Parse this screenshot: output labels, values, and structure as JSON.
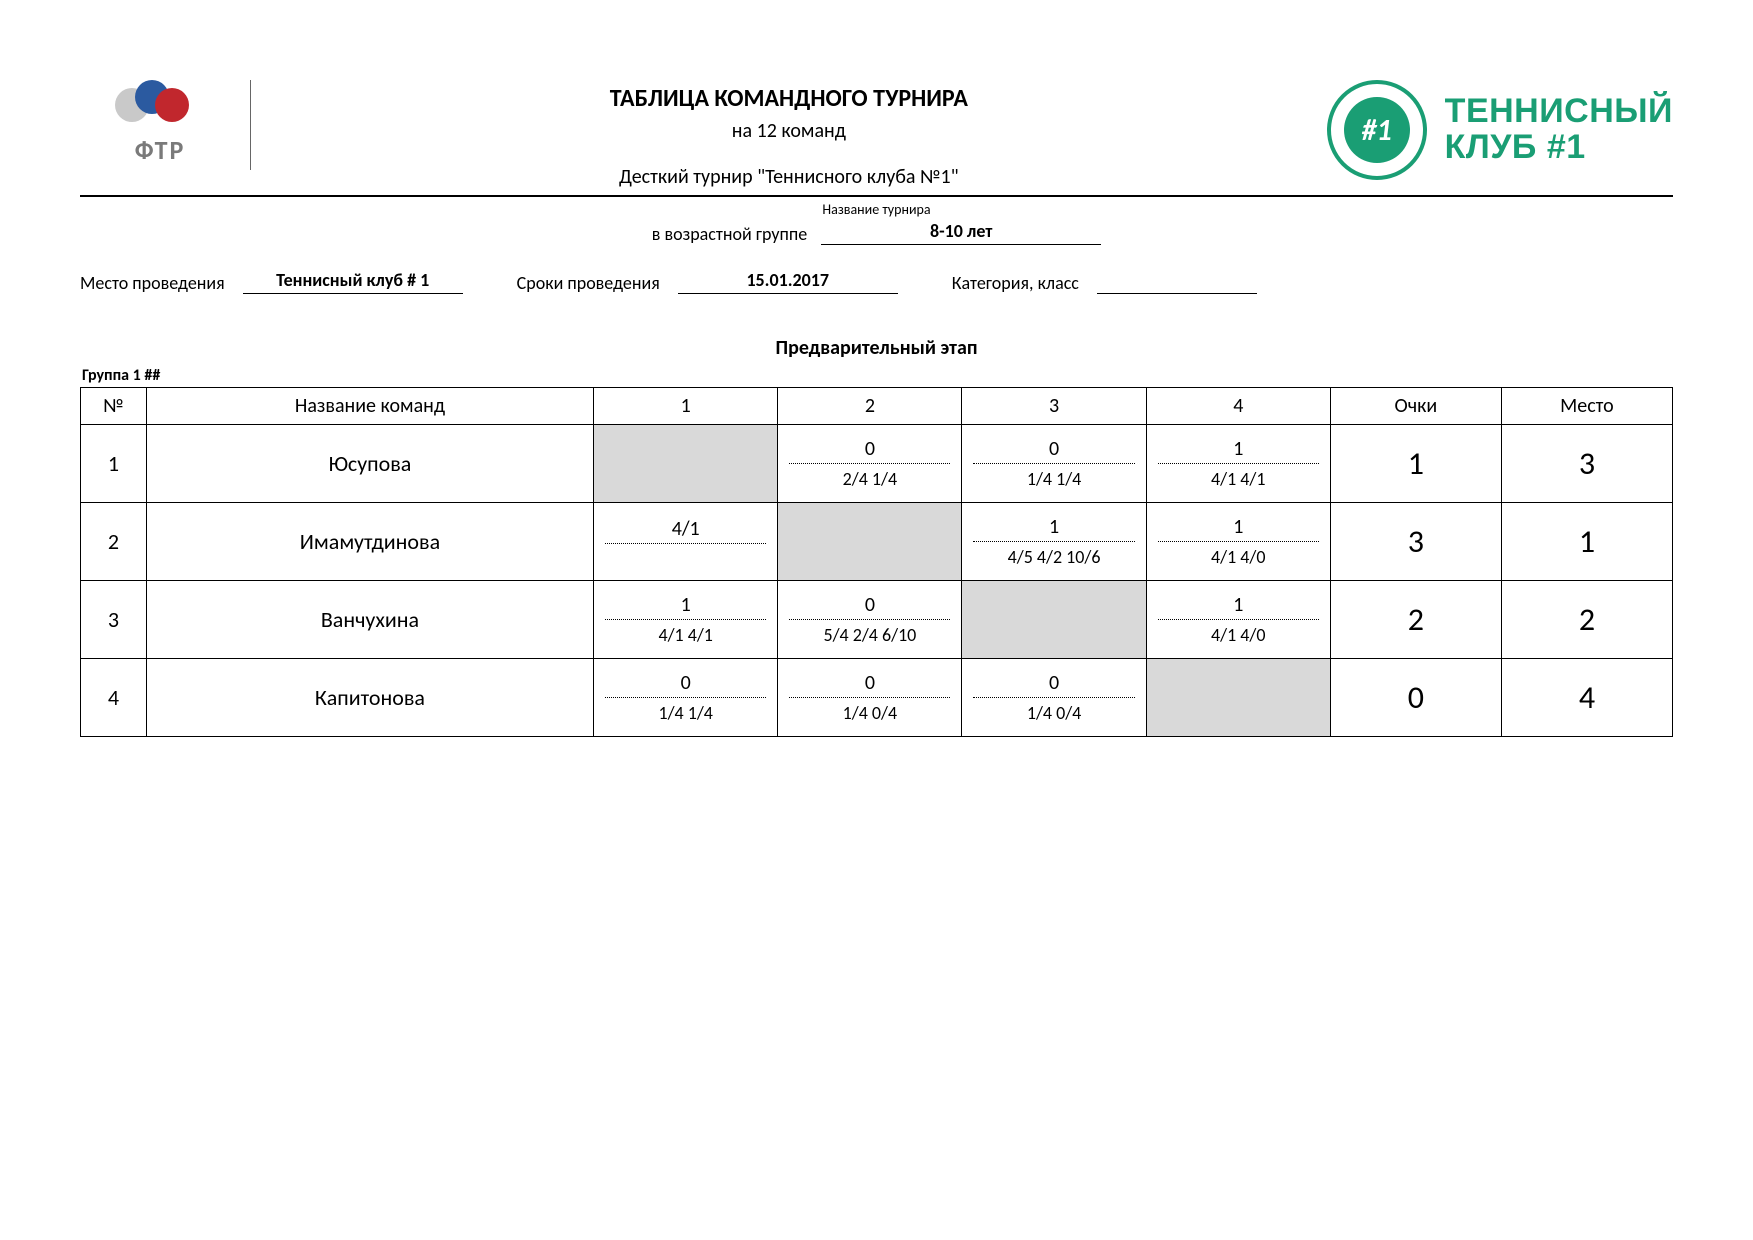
{
  "header": {
    "left_logo_text": "ФТР",
    "title_main": "ТАБЛИЦА КОМАНДНОГО ТУРНИРА",
    "title_sub": "на 12 команд",
    "tournament_name": "Десткий турнир \"Теннисного клуба №1\"",
    "tournament_name_label": "Название турнира",
    "club_text_line1": "ТЕННИСНЫЙ",
    "club_text_line2": "КЛУБ #1",
    "seal_text": "#1"
  },
  "meta": {
    "age_label": "в возрастной группе",
    "age_value": "8-10 лет",
    "venue_label": "Место проведения",
    "venue_value": "Теннисный клуб # 1",
    "dates_label": "Сроки проведения",
    "dates_value": "15.01.2017",
    "category_label": "Категория, класс",
    "category_value": ""
  },
  "stage": {
    "title": "Предварительный этап",
    "group_label": "Группа 1     ##"
  },
  "table": {
    "columns": {
      "num": "№",
      "name": "Название команд",
      "c1": "1",
      "c2": "2",
      "c3": "3",
      "c4": "4",
      "points": "Очки",
      "place": "Место"
    },
    "rows": [
      {
        "num": "1",
        "name": "Юсупова",
        "cells": [
          {
            "diag": true
          },
          {
            "top": "0",
            "bot": "2/4  1/4"
          },
          {
            "top": "0",
            "bot": "1/4 1/4"
          },
          {
            "top": "1",
            "bot": "4/1 4/1"
          }
        ],
        "points": "1",
        "place": "3"
      },
      {
        "num": "2",
        "name": "Имамутдинова",
        "cells": [
          {
            "top": "4/1",
            "bot": ""
          },
          {
            "diag": true
          },
          {
            "top": "1",
            "bot": "4/5 4/2 10/6"
          },
          {
            "top": "1",
            "bot": "4/1 4/0"
          }
        ],
        "points": "3",
        "place": "1"
      },
      {
        "num": "3",
        "name": "Ванчухина",
        "cells": [
          {
            "top": "1",
            "bot": "4/1  4/1"
          },
          {
            "top": "0",
            "bot": "5/4 2/4 6/10"
          },
          {
            "diag": true
          },
          {
            "top": "1",
            "bot": "4/1  4/0"
          }
        ],
        "points": "2",
        "place": "2"
      },
      {
        "num": "4",
        "name": "Капитонова",
        "cells": [
          {
            "top": "0",
            "bot": "1/4  1/4"
          },
          {
            "top": "0",
            "bot": "1/4  0/4"
          },
          {
            "top": "0",
            "bot": "1/4  0/4"
          },
          {
            "diag": true
          }
        ],
        "points": "0",
        "place": "4"
      }
    ]
  },
  "colors": {
    "accent_green": "#1a9e74",
    "diag_fill": "#d9d9d9"
  }
}
